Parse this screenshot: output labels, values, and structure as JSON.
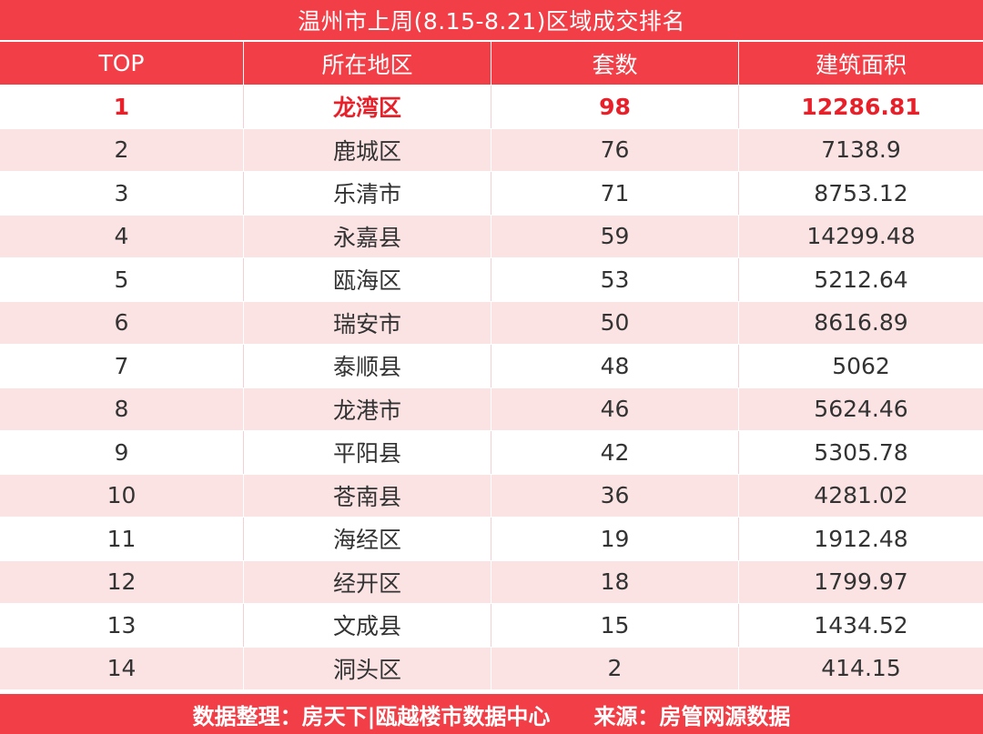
{
  "chart_data": {
    "type": "table",
    "title": "温州市上周(8.15-8.21)区域成交排名",
    "columns": [
      "TOP",
      "所在地区",
      "套数",
      "建筑面积"
    ],
    "rows": [
      [
        "1",
        "龙湾区",
        "98",
        "12286.81"
      ],
      [
        "2",
        "鹿城区",
        "76",
        "7138.9"
      ],
      [
        "3",
        "乐清市",
        "71",
        "8753.12"
      ],
      [
        "4",
        "永嘉县",
        "59",
        "14299.48"
      ],
      [
        "5",
        "瓯海区",
        "53",
        "5212.64"
      ],
      [
        "6",
        "瑞安市",
        "50",
        "8616.89"
      ],
      [
        "7",
        "泰顺县",
        "48",
        "5062"
      ],
      [
        "8",
        "龙港市",
        "46",
        "5624.46"
      ],
      [
        "9",
        "平阳县",
        "42",
        "5305.78"
      ],
      [
        "10",
        "苍南县",
        "36",
        "4281.02"
      ],
      [
        "11",
        "海经区",
        "19",
        "1912.48"
      ],
      [
        "12",
        "经开区",
        "18",
        "1799.97"
      ],
      [
        "13",
        "文成县",
        "15",
        "1434.52"
      ],
      [
        "14",
        "洞头区",
        "2",
        "414.15"
      ]
    ]
  },
  "footer": {
    "source_left": "数据整理：房天下|瓯越楼市数据中心",
    "source_right": "来源：房管网源数据"
  },
  "colors": {
    "header_bg": "#f23f47",
    "stripe_bg": "#fbe3e4",
    "highlight_text": "#e8202a"
  }
}
